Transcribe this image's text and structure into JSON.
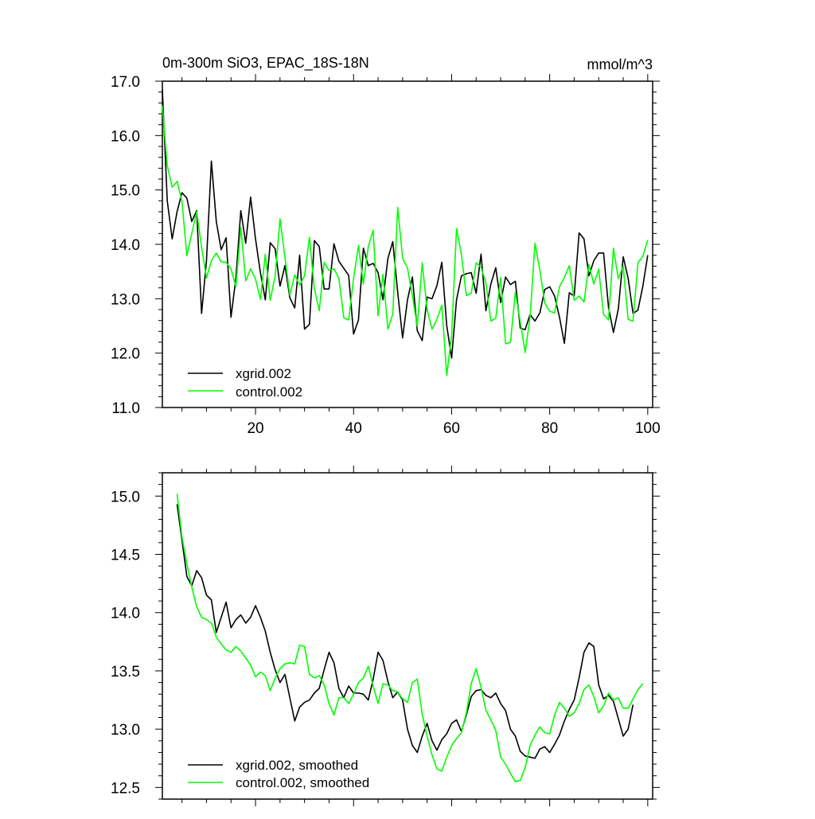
{
  "chart_data": [
    {
      "type": "line",
      "title": "0m-300m SiO3, EPAC_18S-18N",
      "units": "mmol/m^3",
      "xlim": [
        1,
        101
      ],
      "ylim": [
        11.0,
        17.0
      ],
      "x_ticks": [
        20,
        40,
        60,
        80,
        100
      ],
      "y_ticks": [
        11.0,
        12.0,
        13.0,
        14.0,
        15.0,
        16.0,
        17.0
      ],
      "y_tick_labels": [
        "11.0",
        "12.0",
        "13.0",
        "14.0",
        "15.0",
        "16.0",
        "17.0"
      ],
      "legend_position": "bottom-left",
      "series": [
        {
          "name": "xgrid.002",
          "color": "#000000",
          "x_start": 1,
          "values": [
            16.85,
            14.8,
            14.1,
            14.6,
            14.95,
            14.85,
            14.42,
            14.62,
            12.73,
            13.7,
            15.53,
            14.42,
            13.9,
            14.12,
            12.66,
            13.38,
            14.62,
            14.02,
            14.87,
            14.1,
            13.48,
            12.98,
            14.03,
            13.92,
            13.23,
            13.61,
            13.02,
            12.83,
            13.8,
            12.44,
            12.53,
            14.07,
            13.96,
            13.18,
            13.18,
            14.01,
            13.69,
            13.56,
            13.43,
            12.35,
            12.61,
            13.93,
            13.61,
            13.65,
            13.48,
            12.98,
            13.74,
            14.05,
            13.12,
            12.28,
            12.98,
            13.4,
            12.41,
            12.23,
            13.03,
            13.0,
            13.24,
            13.67,
            12.51,
            11.91,
            12.98,
            13.42,
            13.46,
            13.48,
            13.1,
            13.82,
            12.78,
            13.27,
            13.57,
            12.93,
            13.4,
            13.26,
            13.32,
            12.46,
            12.43,
            12.71,
            12.59,
            12.74,
            13.17,
            13.22,
            13.05,
            12.66,
            12.18,
            13.11,
            13.05,
            14.21,
            14.1,
            13.42,
            13.7,
            13.84,
            13.84,
            12.84,
            12.38,
            12.81,
            13.77,
            13.38,
            12.73,
            12.79,
            13.23,
            13.8
          ]
        },
        {
          "name": "control.002",
          "color": "#00ff00",
          "x_start": 1,
          "values": [
            16.55,
            15.45,
            15.05,
            15.16,
            14.79,
            13.79,
            14.2,
            14.6,
            13.95,
            13.38,
            13.7,
            13.84,
            13.68,
            13.67,
            13.55,
            13.22,
            14.31,
            13.33,
            13.55,
            13.36,
            12.99,
            13.82,
            12.97,
            13.42,
            14.47,
            13.76,
            13.07,
            13.44,
            13.25,
            13.42,
            14.13,
            13.19,
            12.78,
            13.67,
            13.52,
            13.55,
            13.38,
            12.65,
            12.61,
            13.37,
            13.98,
            13.27,
            13.96,
            14.26,
            12.69,
            13.45,
            12.44,
            12.72,
            14.68,
            13.75,
            13.56,
            13.06,
            12.49,
            13.66,
            12.8,
            12.44,
            12.62,
            12.88,
            11.59,
            12.33,
            14.29,
            13.81,
            13.06,
            13.1,
            13.66,
            13.58,
            13.29,
            12.59,
            12.64,
            13.39,
            12.17,
            12.2,
            13.12,
            12.58,
            12.01,
            12.66,
            14.02,
            13.52,
            12.92,
            12.77,
            12.74,
            13.22,
            13.39,
            13.61,
            12.97,
            13.05,
            12.94,
            13.63,
            13.27,
            13.54,
            12.71,
            12.61,
            13.93,
            13.37,
            13.6,
            12.62,
            12.59,
            13.66,
            13.78,
            14.08
          ]
        }
      ]
    },
    {
      "type": "line",
      "xlim": [
        1,
        101
      ],
      "ylim": [
        12.4,
        15.2
      ],
      "x_ticks": [
        20,
        40,
        60,
        80,
        100
      ],
      "y_ticks": [
        12.5,
        13.0,
        13.5,
        14.0,
        14.5,
        15.0
      ],
      "y_tick_labels": [
        "12.5",
        "13.0",
        "13.5",
        "14.0",
        "14.5",
        "15.0"
      ],
      "legend_position": "bottom-left",
      "series": [
        {
          "name": "xgrid.002, smoothed",
          "color": "#000000",
          "x_start": 4,
          "values": [
            14.93,
            14.62,
            14.31,
            14.23,
            14.36,
            14.3,
            14.15,
            14.11,
            13.83,
            13.96,
            14.09,
            13.87,
            13.94,
            13.98,
            13.91,
            13.96,
            14.06,
            13.96,
            13.84,
            13.66,
            13.51,
            13.4,
            13.47,
            13.27,
            13.07,
            13.19,
            13.23,
            13.25,
            13.31,
            13.35,
            13.51,
            13.66,
            13.57,
            13.35,
            13.27,
            13.37,
            13.31,
            13.31,
            13.3,
            13.25,
            13.43,
            13.66,
            13.59,
            13.41,
            13.27,
            13.32,
            13.25,
            13.0,
            12.86,
            12.8,
            12.94,
            13.05,
            12.9,
            12.82,
            12.91,
            12.96,
            13.05,
            13.08,
            12.98,
            13.12,
            13.28,
            13.33,
            13.34,
            13.29,
            13.27,
            13.31,
            13.22,
            13.16,
            13.0,
            12.94,
            12.81,
            12.77,
            12.76,
            12.75,
            12.83,
            12.85,
            12.8,
            12.87,
            12.95,
            13.07,
            13.17,
            13.25,
            13.44,
            13.66,
            13.74,
            13.71,
            13.38,
            13.26,
            13.29,
            13.24,
            13.09,
            12.94,
            13.0,
            13.21
          ]
        },
        {
          "name": "control.002, smoothed",
          "color": "#00ff00",
          "x_start": 4,
          "values": [
            15.02,
            14.65,
            14.42,
            14.22,
            14.05,
            13.96,
            13.94,
            13.91,
            13.79,
            13.73,
            13.68,
            13.66,
            13.71,
            13.67,
            13.61,
            13.55,
            13.45,
            13.49,
            13.46,
            13.33,
            13.44,
            13.52,
            13.56,
            13.57,
            13.56,
            13.72,
            13.71,
            13.47,
            13.44,
            13.46,
            13.38,
            13.22,
            13.12,
            13.27,
            13.27,
            13.22,
            13.3,
            13.4,
            13.44,
            13.54,
            13.37,
            13.22,
            13.39,
            13.38,
            13.33,
            13.32,
            13.26,
            13.23,
            13.4,
            13.43,
            13.13,
            12.94,
            12.78,
            12.66,
            12.64,
            12.76,
            12.86,
            12.92,
            12.97,
            13.14,
            13.39,
            13.52,
            13.36,
            13.16,
            13.08,
            12.99,
            12.76,
            12.7,
            12.62,
            12.55,
            12.56,
            12.67,
            12.86,
            12.95,
            13.02,
            12.97,
            12.96,
            13.12,
            13.23,
            13.18,
            13.11,
            13.14,
            13.22,
            13.34,
            13.38,
            13.28,
            13.14,
            13.2,
            13.31,
            13.25,
            13.27,
            13.18,
            13.18,
            13.26,
            13.34,
            13.39
          ]
        }
      ]
    }
  ]
}
